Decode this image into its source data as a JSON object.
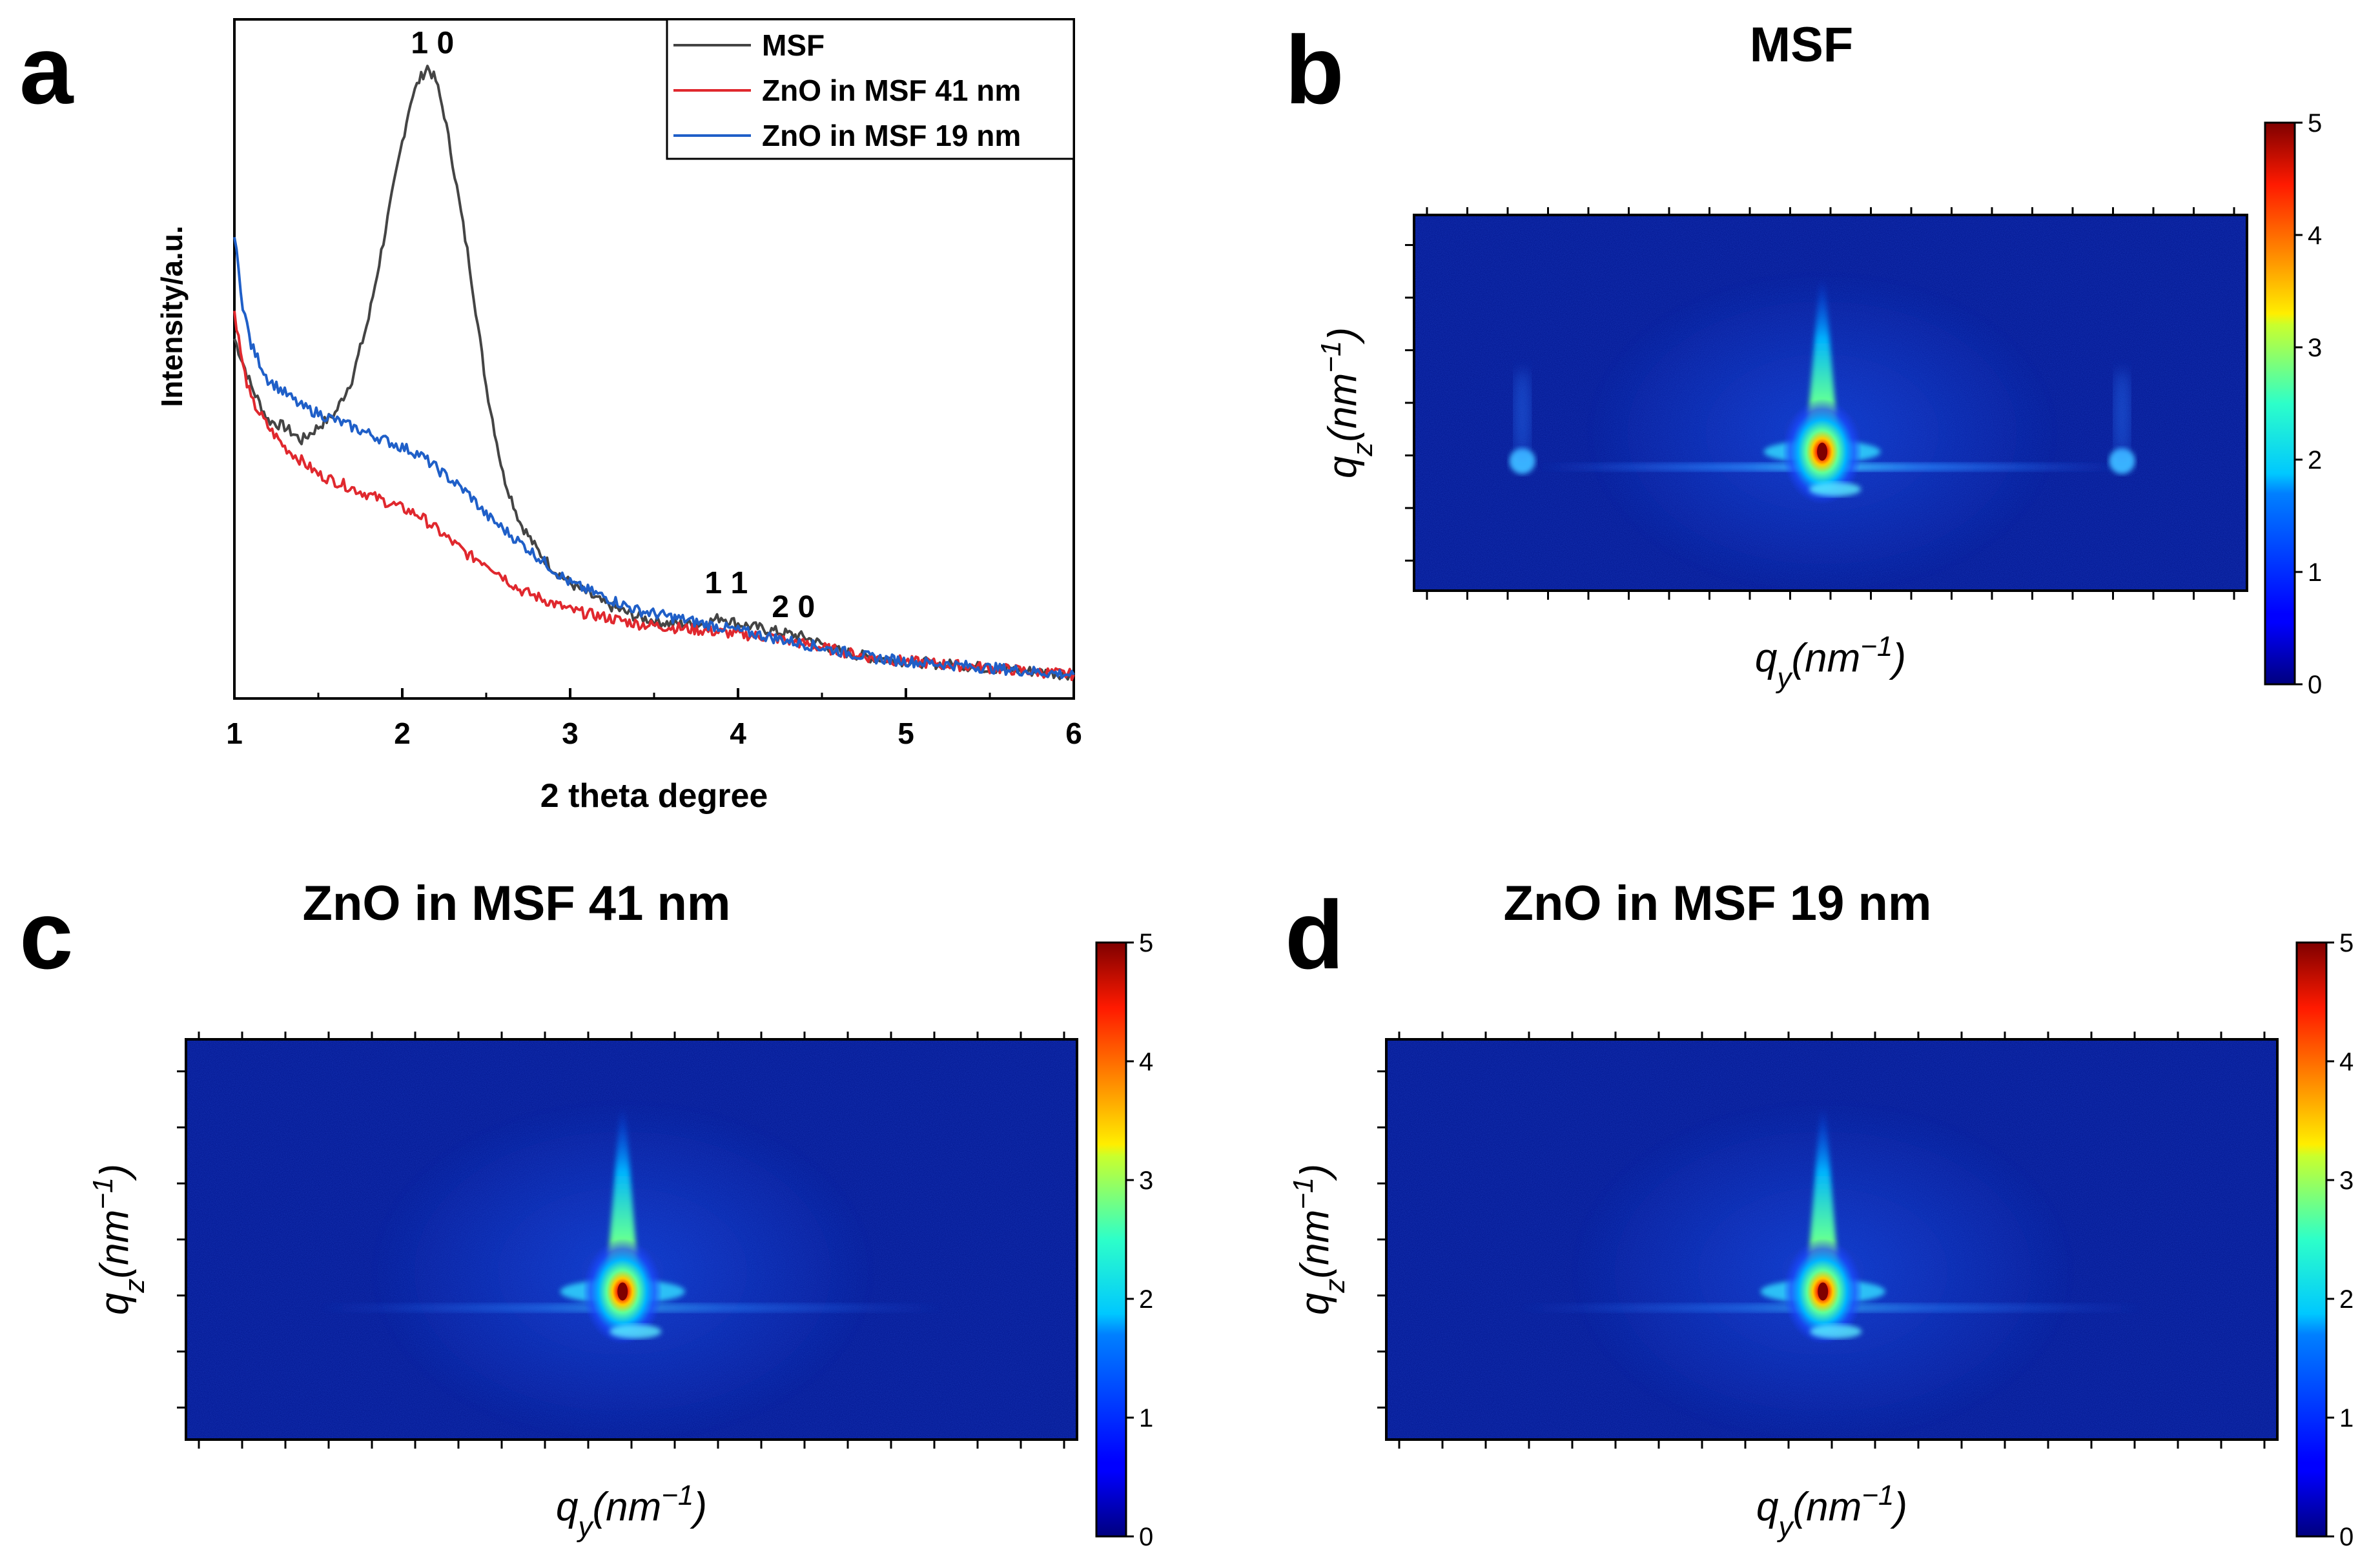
{
  "panels": {
    "a": {
      "letter": "a"
    },
    "b": {
      "letter": "b",
      "title": "MSF"
    },
    "c": {
      "letter": "c",
      "title": "ZnO in MSF 41 nm"
    },
    "d": {
      "letter": "d",
      "title": "ZnO in MSF 19 nm"
    }
  },
  "colors": {
    "msf": "#444444",
    "zno41": "#e0282e",
    "zno19": "#1f5fc8"
  },
  "chart_data": [
    {
      "id": "a",
      "type": "line",
      "xlabel": "2 theta degree",
      "ylabel": "Intensity/a.u.",
      "xlim": [
        1,
        6
      ],
      "ylim": [
        0,
        100
      ],
      "xticks": [
        "1",
        "2",
        "3",
        "4",
        "5",
        "6"
      ],
      "legend_position": "top-right",
      "annotations": [
        {
          "text": "1 0",
          "x": 2.18,
          "y": 95
        },
        {
          "text": "1 1",
          "x": 3.93,
          "y": 15.5
        },
        {
          "text": "2 0",
          "x": 4.33,
          "y": 12
        }
      ],
      "series": [
        {
          "name": "MSF",
          "color": "#444444",
          "x": [
            1.0,
            1.1,
            1.2,
            1.3,
            1.4,
            1.5,
            1.6,
            1.7,
            1.8,
            1.9,
            2.0,
            2.05,
            2.1,
            2.15,
            2.2,
            2.25,
            2.3,
            2.4,
            2.5,
            2.6,
            2.7,
            2.8,
            2.9,
            3.0,
            3.2,
            3.4,
            3.6,
            3.8,
            3.9,
            4.0,
            4.2,
            4.4,
            4.6,
            4.8,
            5.0,
            5.5,
            6.0
          ],
          "y": [
            53,
            46,
            41,
            40,
            38,
            40,
            42,
            47,
            56,
            69,
            82,
            88,
            91,
            93,
            91,
            86,
            79,
            64,
            46,
            33,
            26,
            22,
            19,
            17,
            14,
            12,
            11,
            11,
            12,
            11,
            10,
            9,
            7,
            6,
            5.5,
            4.5,
            3.5
          ]
        },
        {
          "name": "ZnO in MSF 41 nm",
          "color": "#e0282e",
          "x": [
            1.0,
            1.05,
            1.1,
            1.2,
            1.3,
            1.4,
            1.5,
            1.6,
            1.7,
            1.8,
            1.9,
            2.0,
            2.1,
            2.2,
            2.3,
            2.4,
            2.5,
            2.6,
            2.7,
            2.8,
            3.0,
            3.2,
            3.4,
            3.6,
            3.8,
            4.0,
            4.2,
            4.4,
            4.6,
            4.8,
            5.0,
            5.5,
            6.0
          ],
          "y": [
            57,
            49,
            44,
            40,
            37,
            35,
            33,
            32,
            31,
            30,
            29,
            28,
            27,
            25,
            23,
            21,
            20,
            18,
            16,
            15,
            13,
            12,
            11,
            10.5,
            10,
            9.5,
            9,
            8,
            7,
            6,
            5.5,
            4.5,
            3.5
          ]
        },
        {
          "name": "ZnO in MSF 19 nm",
          "color": "#1f5fc8",
          "x": [
            1.0,
            1.05,
            1.1,
            1.2,
            1.3,
            1.4,
            1.5,
            1.6,
            1.7,
            1.8,
            1.9,
            2.0,
            2.1,
            2.2,
            2.3,
            2.4,
            2.5,
            2.6,
            2.7,
            2.8,
            3.0,
            3.2,
            3.4,
            3.6,
            3.8,
            4.0,
            4.2,
            4.4,
            4.6,
            4.8,
            5.0,
            5.5,
            6.0
          ],
          "y": [
            68,
            58,
            52,
            47,
            45,
            43,
            42,
            41,
            40,
            39,
            38,
            37,
            36,
            34,
            32,
            30,
            27,
            25,
            23,
            21,
            17,
            15,
            13,
            12,
            11,
            10,
            9,
            8,
            7,
            6,
            5.5,
            4.5,
            3.5
          ]
        }
      ]
    },
    {
      "id": "b",
      "type": "heatmap",
      "title": "MSF",
      "xlabel_base": "q",
      "xlabel_sub": "y",
      "xlabel_unit": "(nm",
      "xlabel_exp": "−1",
      "xlabel_close": ")",
      "ylabel_base": "q",
      "ylabel_sub": "z",
      "ylabel_unit": "(nm",
      "ylabel_exp": "−1",
      "ylabel_close": ")",
      "colorbar_range": [
        0,
        5
      ],
      "colorbar_ticks": [
        "0",
        "1",
        "2",
        "3",
        "4",
        "5"
      ],
      "colormap": "jet",
      "features": [
        "central beam spot",
        "vertical streak",
        "Yoneda horizontal line",
        "symmetric side peaks"
      ]
    },
    {
      "id": "c",
      "type": "heatmap",
      "title": "ZnO in MSF 41 nm",
      "xlabel_base": "q",
      "xlabel_sub": "y",
      "xlabel_unit": "(nm",
      "xlabel_exp": "−1",
      "xlabel_close": ")",
      "ylabel_base": "q",
      "ylabel_sub": "z",
      "ylabel_unit": "(nm",
      "ylabel_exp": "−1",
      "ylabel_close": ")",
      "colorbar_range": [
        0,
        5
      ],
      "colorbar_ticks": [
        "0",
        "1",
        "2",
        "3",
        "4",
        "5"
      ],
      "colormap": "jet",
      "features": [
        "central beam spot",
        "vertical streak"
      ]
    },
    {
      "id": "d",
      "type": "heatmap",
      "title": "ZnO in MSF 19 nm",
      "xlabel_base": "q",
      "xlabel_sub": "y",
      "xlabel_unit": "(nm",
      "xlabel_exp": "−1",
      "xlabel_close": ")",
      "ylabel_base": "q",
      "ylabel_sub": "z",
      "ylabel_unit": "(nm",
      "ylabel_exp": "−1",
      "ylabel_close": ")",
      "colorbar_range": [
        0,
        5
      ],
      "colorbar_ticks": [
        "0",
        "1",
        "2",
        "3",
        "4",
        "5"
      ],
      "colormap": "jet",
      "features": [
        "central beam spot",
        "vertical streak"
      ]
    }
  ]
}
